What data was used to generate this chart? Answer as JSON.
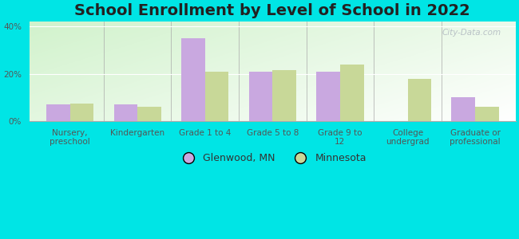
{
  "title": "School Enrollment by Level of School in 2022",
  "categories": [
    "Nursery,\npreschool",
    "Kindergarten",
    "Grade 1 to 4",
    "Grade 5 to 8",
    "Grade 9 to\n12",
    "College\nundergrad",
    "Graduate or\nprofessional"
  ],
  "glenwood_values": [
    7,
    7,
    35,
    21,
    21,
    0,
    10
  ],
  "minnesota_values": [
    7.5,
    6,
    21,
    21.5,
    24,
    18,
    6
  ],
  "glenwood_color": "#c9a8e0",
  "minnesota_color": "#c8d898",
  "ylim": [
    0,
    42
  ],
  "yticks": [
    0,
    20,
    40
  ],
  "ytick_labels": [
    "0%",
    "20%",
    "40%"
  ],
  "background_color": "#00e5e5",
  "title_fontsize": 14,
  "tick_fontsize": 7.5,
  "legend_fontsize": 9,
  "bar_width": 0.35,
  "watermark": "City-Data.com"
}
